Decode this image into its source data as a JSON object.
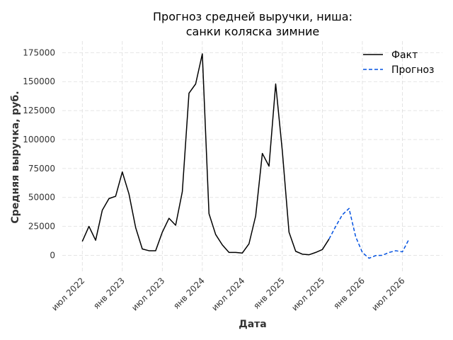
{
  "chart_data": {
    "type": "line",
    "title_line1": "Прогноз средней выручки, ниша:",
    "title_line2": "санки коляска зимние",
    "xlabel": "Дата",
    "ylabel": "Средняя выручка, руб.",
    "ylim": [
      -15000,
      185000
    ],
    "yticks": [
      0,
      25000,
      50000,
      75000,
      100000,
      125000,
      150000,
      175000
    ],
    "xticks": [
      {
        "date": "2022-07",
        "label": "июл 2022"
      },
      {
        "date": "2023-01",
        "label": "янв 2023"
      },
      {
        "date": "2023-07",
        "label": "июл 2023"
      },
      {
        "date": "2024-01",
        "label": "янв 2024"
      },
      {
        "date": "2024-07",
        "label": "июл 2024"
      },
      {
        "date": "2025-01",
        "label": "янв 2025"
      },
      {
        "date": "2025-07",
        "label": "июл 2025"
      },
      {
        "date": "2026-01",
        "label": "янв 2026"
      },
      {
        "date": "2026-07",
        "label": "июл 2026"
      }
    ],
    "xlim": [
      "2022-04",
      "2027-01"
    ],
    "grid": true,
    "legend_position": "top-right",
    "series": [
      {
        "name": "Факт",
        "color": "#000000",
        "style": "solid",
        "points": [
          [
            "2022-07",
            12000
          ],
          [
            "2022-08",
            25000
          ],
          [
            "2022-09",
            13000
          ],
          [
            "2022-10",
            39000
          ],
          [
            "2022-11",
            49000
          ],
          [
            "2022-12",
            51000
          ],
          [
            "2023-01",
            72000
          ],
          [
            "2023-02",
            53000
          ],
          [
            "2023-03",
            24000
          ],
          [
            "2023-04",
            5500
          ],
          [
            "2023-05",
            4000
          ],
          [
            "2023-06",
            4000
          ],
          [
            "2023-07",
            20000
          ],
          [
            "2023-08",
            32000
          ],
          [
            "2023-09",
            26000
          ],
          [
            "2023-10",
            55000
          ],
          [
            "2023-11",
            140000
          ],
          [
            "2023-12",
            148000
          ],
          [
            "2024-01",
            174000
          ],
          [
            "2024-02",
            36000
          ],
          [
            "2024-03",
            18000
          ],
          [
            "2024-04",
            9000
          ],
          [
            "2024-05",
            2500
          ],
          [
            "2024-06",
            2500
          ],
          [
            "2024-07",
            2000
          ],
          [
            "2024-08",
            10000
          ],
          [
            "2024-09",
            34000
          ],
          [
            "2024-10",
            88000
          ],
          [
            "2024-11",
            77000
          ],
          [
            "2024-12",
            148000
          ],
          [
            "2025-01",
            90000
          ],
          [
            "2025-02",
            20000
          ],
          [
            "2025-03",
            3500
          ],
          [
            "2025-04",
            1000
          ],
          [
            "2025-05",
            500
          ],
          [
            "2025-06",
            2500
          ],
          [
            "2025-07",
            5000
          ],
          [
            "2025-08",
            14000
          ]
        ]
      },
      {
        "name": "Прогноз",
        "color": "#0050e0",
        "style": "dashed",
        "points": [
          [
            "2025-08",
            14000
          ],
          [
            "2025-09",
            25000
          ],
          [
            "2025-10",
            35000
          ],
          [
            "2025-11",
            40500
          ],
          [
            "2025-12",
            16000
          ],
          [
            "2026-01",
            2500
          ],
          [
            "2026-02",
            -2500
          ],
          [
            "2026-03",
            -200
          ],
          [
            "2026-04",
            0
          ],
          [
            "2026-05",
            2500
          ],
          [
            "2026-06",
            4000
          ],
          [
            "2026-07",
            3000
          ],
          [
            "2026-08",
            14000
          ]
        ]
      }
    ]
  }
}
